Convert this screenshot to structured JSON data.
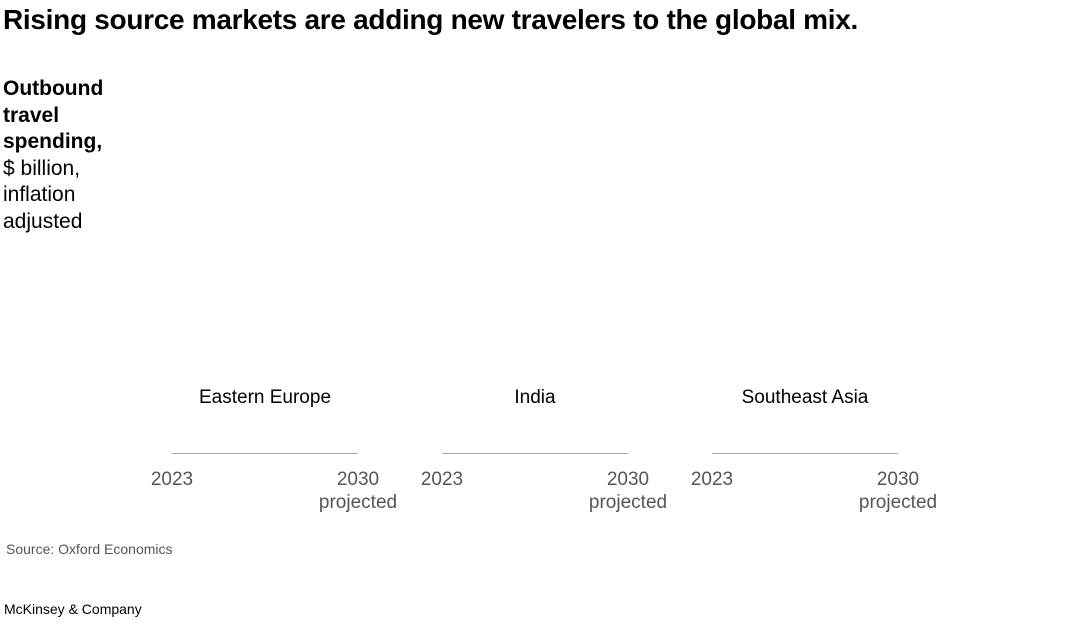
{
  "title": "Rising source markets are adding new travelers to the global mix.",
  "y_label": {
    "bold": "Outbound travel spending,",
    "unit": "$ billion, inflation adjusted"
  },
  "panels": [
    {
      "title": "Eastern Europe",
      "x_start": "2023",
      "x_end": "2030",
      "x_end_note": "projected"
    },
    {
      "title": "India",
      "x_start": "2023",
      "x_end": "2030",
      "x_end_note": "projected"
    },
    {
      "title": "Southeast Asia",
      "x_start": "2023",
      "x_end": "2030",
      "x_end_note": "projected"
    }
  ],
  "source": "Source: Oxford Economics",
  "brand": "McKinsey & Company"
}
